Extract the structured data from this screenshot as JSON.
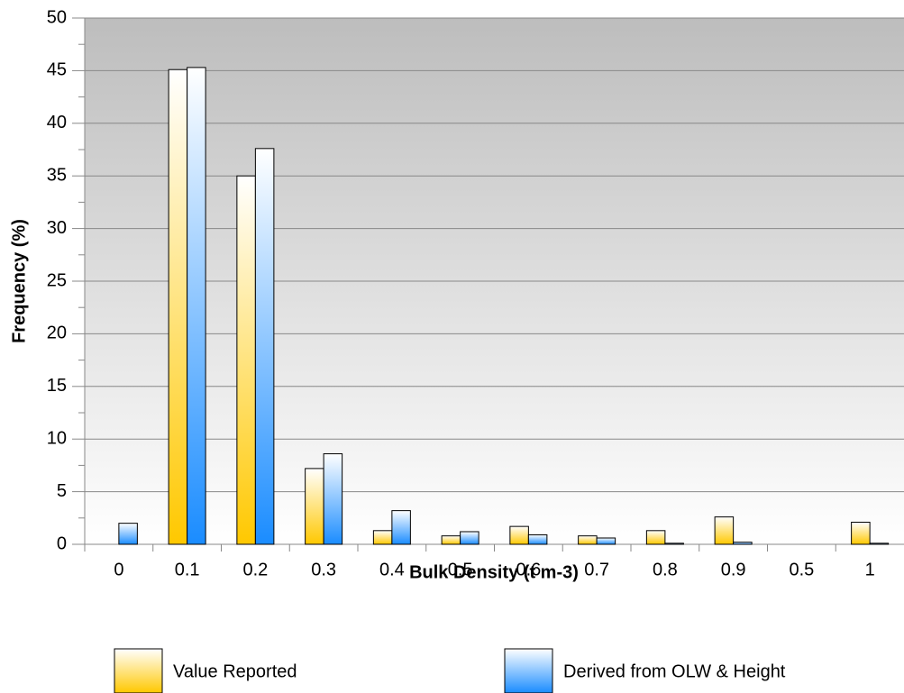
{
  "chart_data": {
    "type": "bar",
    "xlabel": "Bulk Density (t m-3)",
    "ylabel": "Frequency (%)",
    "categories": [
      "0",
      "0.1",
      "0.2",
      "0.3",
      "0.4",
      "0.5",
      "0.6",
      "0.7",
      "0.8",
      "0.9",
      "0.5",
      "1"
    ],
    "series": [
      {
        "name": "Value  Reported",
        "color": "#ffc800",
        "values": [
          0,
          45.1,
          35,
          7.2,
          1.3,
          0.8,
          1.7,
          0.8,
          1.3,
          2.6,
          0,
          2.1
        ]
      },
      {
        "name": "Derived from OLW & Height",
        "color": "#1a8cff",
        "values": [
          2.0,
          45.3,
          37.6,
          8.6,
          3.2,
          1.2,
          0.9,
          0.6,
          0.1,
          0.2,
          0,
          0.1
        ]
      }
    ],
    "ylim": [
      0,
      50
    ],
    "yticks": [
      0,
      5,
      10,
      15,
      20,
      25,
      30,
      35,
      40,
      45,
      50
    ],
    "grid": true
  }
}
